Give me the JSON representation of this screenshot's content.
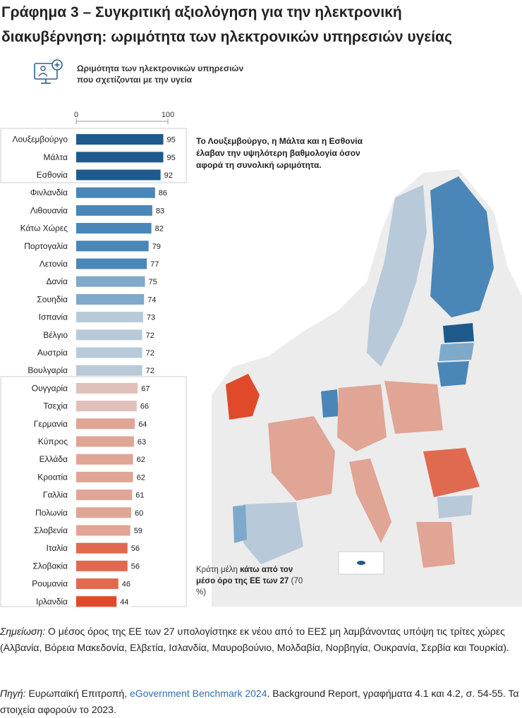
{
  "heading": {
    "line1": "Γράφημα 3 – Συγκριτική αξιολόγηση για την ηλεκτρονική",
    "line2": "διακυβέρνηση: ωριμότητα των ηλεκτρονικών υπηρεσιών υγείας"
  },
  "icon": "health-monitor-icon",
  "chart_data": {
    "type": "bar",
    "orientation": "horizontal",
    "title_line1": "Ωριμότητα των ηλεκτρονικών υπηρεσιών",
    "title_line2": "που σχετίζονται με την υγεία",
    "xlim": [
      0,
      100
    ],
    "tick_labels": [
      "0",
      "100"
    ],
    "categories": [
      "Λουξεμβούργο",
      "Μάλτα",
      "Εσθονία",
      "Φινλανδία",
      "Λιθουανία",
      "Κάτω Χώρες",
      "Πορτογαλία",
      "Λετονία",
      "Δανία",
      "Σουηδία",
      "Ισπανία",
      "Βέλγιο",
      "Αυστρία",
      "Βουλγαρία",
      "Ουγγαρία",
      "Τσεχία",
      "Γερμανία",
      "Κύπρος",
      "Ελλάδα",
      "Κροατία",
      "Γαλλία",
      "Πολωνία",
      "Σλοβενία",
      "Ιταλία",
      "Σλοβακία",
      "Ρουμανία",
      "Ιρλανδία"
    ],
    "values": [
      95,
      95,
      92,
      86,
      83,
      82,
      79,
      77,
      75,
      74,
      73,
      72,
      72,
      72,
      67,
      66,
      64,
      63,
      62,
      62,
      61,
      60,
      59,
      56,
      56,
      46,
      44
    ],
    "eu27_average": 70,
    "colors": {
      "top": "#1f5a8c",
      "above_high": "#4a86b8",
      "above_mid": "#7ea9cb",
      "above_low": "#b8cad9",
      "below_high": "#e0c0b8",
      "below_mid": "#e0a595",
      "below_low": "#e06a50",
      "lowest": "#e04a2a"
    },
    "callout": "Το Λουξεμβούργο, η Μάλτα και η Εσθονία έλαβαν την υψηλότερη βαθμολογία όσον αφορά τη συνολική ωριμότητα.",
    "below_note_part1": "Κράτη μέλη",
    "below_note_bold1": "κάτω από τον μέσο όρο της ΕΕ των 27",
    "below_note_part2": "(70 %)"
  },
  "footer": {
    "note_label": "Σημείωση:",
    "note_text": "Ο μέσος όρος της ΕΕ των 27 υπολογίστηκε εκ νέου από το ΕΕΣ μη λαμβάνοντας υπόψη τις τρίτες χώρες (Αλβανία, Βόρεια Μακεδονία, Ελβετία, Ισλανδία, Μαυροβούνιο, Μολδαβία, Νορβηγία, Ουκρανία, Σερβία και Τουρκία).",
    "source_label": "Πηγή:",
    "source_pre": "Ευρωπαϊκή Επιτροπή,",
    "source_link": "eGovernment Benchmark 2024",
    "source_post": ". Background Report, γραφήματα 4.1 και 4.2, σ. 54-55. Τα στοιχεία αφορούν το 2023."
  }
}
